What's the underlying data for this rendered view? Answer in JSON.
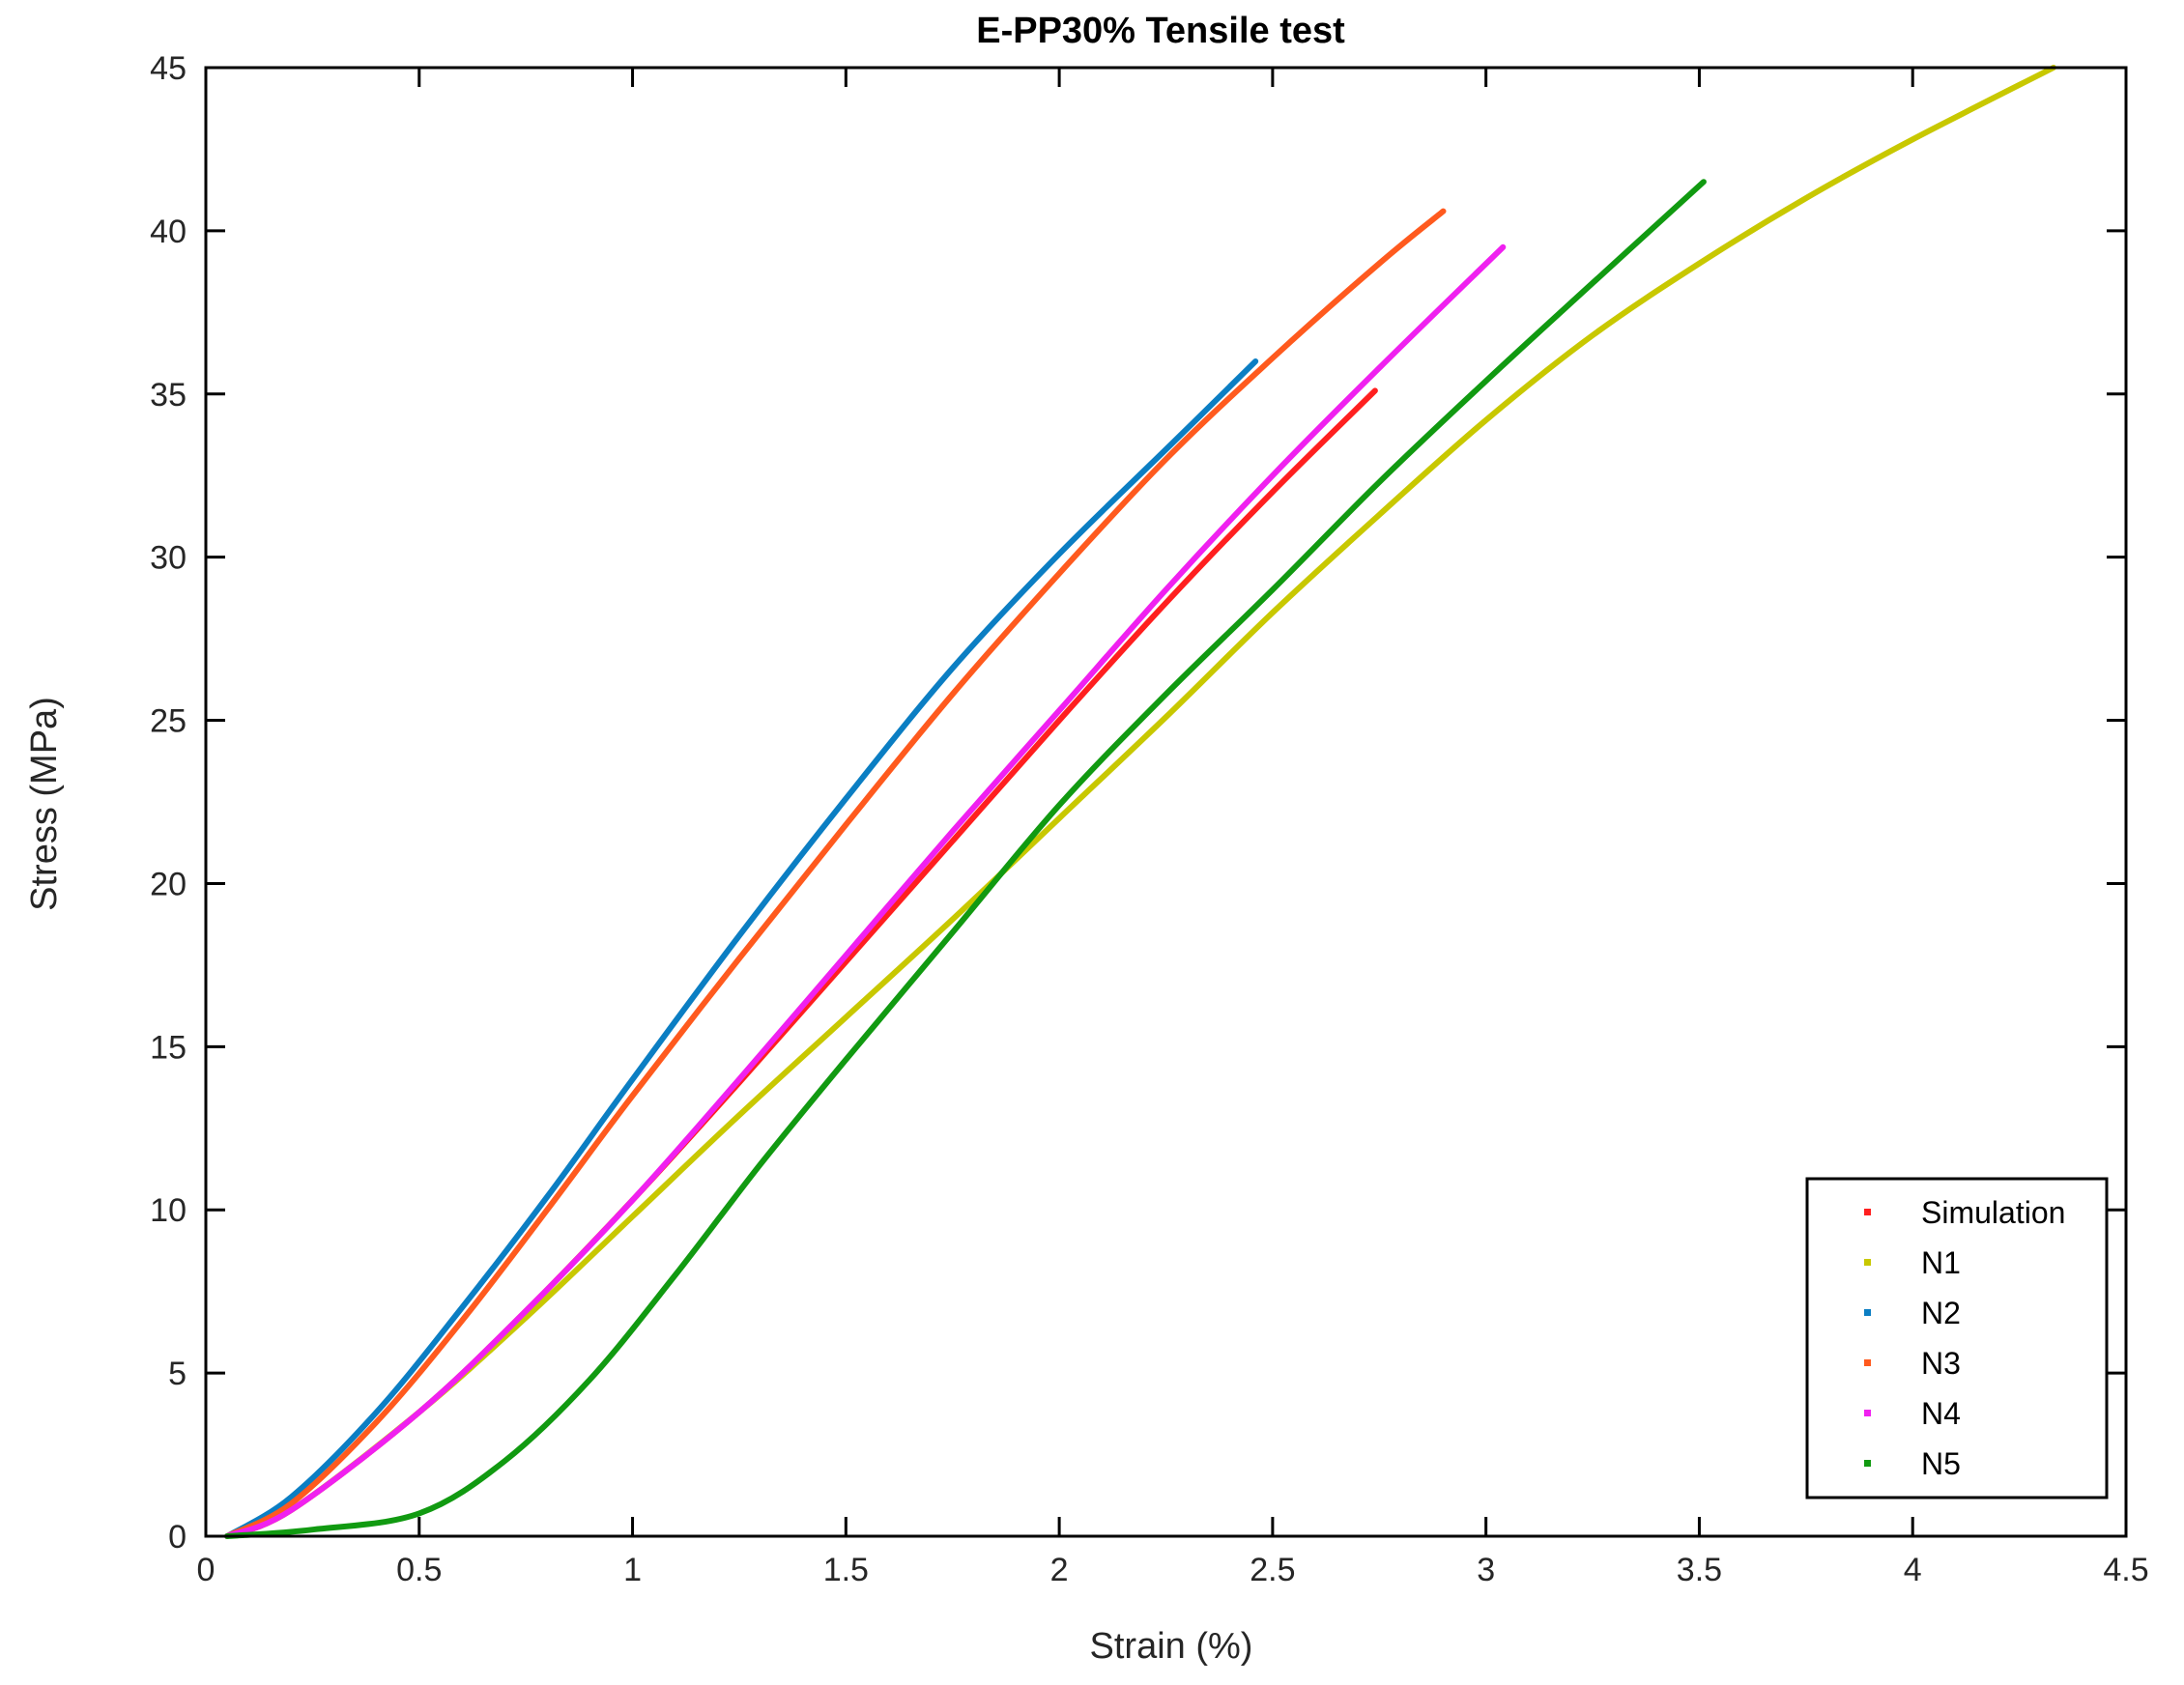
{
  "chart_data": {
    "type": "line",
    "title": "E-PP30% Tensile test",
    "xlabel": "Strain (%)",
    "ylabel": "Stress (MPa)",
    "xlim": [
      0,
      4.5
    ],
    "ylim": [
      0,
      45
    ],
    "xticks": [
      0,
      0.5,
      1,
      1.5,
      2,
      2.5,
      3,
      3.5,
      4,
      4.5
    ],
    "xtick_labels": [
      "0",
      "0.5",
      "1",
      "1.5",
      "2",
      "2.5",
      "3",
      "3.5",
      "4",
      "4.5"
    ],
    "yticks": [
      0,
      5,
      10,
      15,
      20,
      25,
      30,
      35,
      40,
      45
    ],
    "ytick_labels": [
      "0",
      "5",
      "10",
      "15",
      "20",
      "25",
      "30",
      "35",
      "40",
      "45"
    ],
    "grid": false,
    "legend_position": "bottom-right",
    "series": [
      {
        "name": "Simulation",
        "color": "#ff1f1f",
        "x": [
          0.05,
          0.2,
          0.5,
          0.75,
          1.0,
          1.25,
          1.5,
          1.75,
          2.0,
          2.25,
          2.5,
          2.74
        ],
        "y": [
          0.0,
          0.8,
          3.8,
          6.9,
          10.3,
          13.9,
          17.6,
          21.3,
          25.0,
          28.6,
          32.0,
          35.1
        ]
      },
      {
        "name": "N1",
        "color": "#c8c800",
        "x": [
          0.05,
          0.2,
          0.5,
          0.75,
          1.0,
          1.25,
          1.5,
          1.75,
          2.0,
          2.25,
          2.5,
          2.75,
          3.0,
          3.25,
          3.5,
          3.75,
          4.0,
          4.33
        ],
        "y": [
          0.0,
          0.8,
          3.8,
          6.7,
          9.8,
          12.9,
          15.9,
          18.9,
          22.0,
          25.1,
          28.3,
          31.3,
          34.2,
          36.8,
          39.0,
          41.0,
          42.8,
          45.0
        ]
      },
      {
        "name": "N2",
        "color": "#0b7ec3",
        "x": [
          0.05,
          0.2,
          0.4,
          0.6,
          0.8,
          1.0,
          1.25,
          1.5,
          1.75,
          2.0,
          2.25,
          2.46
        ],
        "y": [
          0.0,
          1.2,
          3.8,
          7.0,
          10.4,
          14.0,
          18.4,
          22.6,
          26.6,
          30.1,
          33.3,
          36.0
        ]
      },
      {
        "name": "N3",
        "color": "#ff5a1e",
        "x": [
          0.05,
          0.2,
          0.4,
          0.6,
          0.8,
          1.0,
          1.25,
          1.5,
          1.75,
          2.0,
          2.25,
          2.5,
          2.75,
          2.9
        ],
        "y": [
          0.0,
          1.0,
          3.5,
          6.6,
          10.0,
          13.5,
          17.7,
          21.8,
          25.8,
          29.5,
          33.0,
          36.1,
          39.0,
          40.6
        ]
      },
      {
        "name": "N4",
        "color": "#f020f0",
        "x": [
          0.05,
          0.2,
          0.5,
          0.75,
          1.0,
          1.25,
          1.5,
          1.75,
          2.0,
          2.25,
          2.5,
          2.75,
          3.04
        ],
        "y": [
          0.0,
          0.8,
          3.8,
          6.9,
          10.3,
          14.0,
          17.8,
          21.6,
          25.3,
          29.0,
          32.5,
          35.8,
          39.5
        ]
      },
      {
        "name": "N5",
        "color": "#119a11",
        "x": [
          0.05,
          0.25,
          0.5,
          0.7,
          0.9,
          1.1,
          1.3,
          1.5,
          1.75,
          2.0,
          2.25,
          2.5,
          2.75,
          3.0,
          3.25,
          3.51
        ],
        "y": [
          0.0,
          0.2,
          0.7,
          2.3,
          4.8,
          8.0,
          11.4,
          14.6,
          18.5,
          22.4,
          25.8,
          29.0,
          32.3,
          35.4,
          38.4,
          41.5
        ]
      }
    ]
  }
}
